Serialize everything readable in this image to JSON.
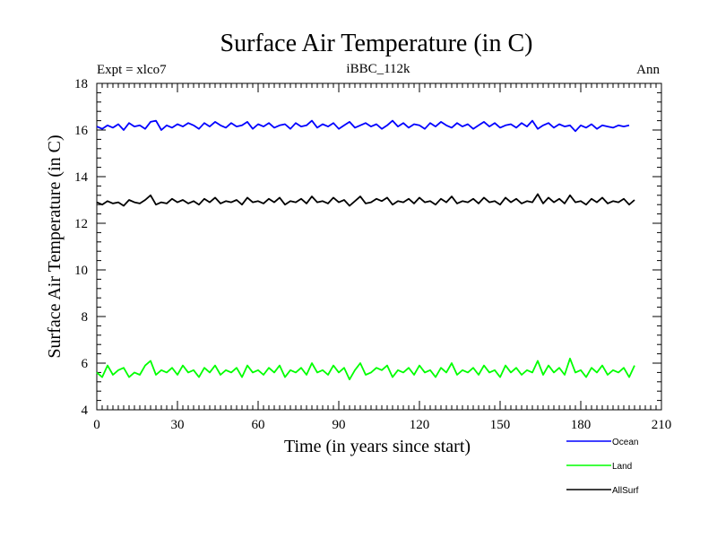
{
  "chart_data": {
    "type": "line",
    "title": "Surface Air Temperature (in C)",
    "subtitle": "iBBC_112k",
    "expt_label": "Expt = xlco7",
    "period_label": "Ann",
    "xlabel": "Time (in years since start)",
    "ylabel": "Surface Air Temperature (in C)",
    "xlim": [
      0,
      210
    ],
    "ylim": [
      4,
      18
    ],
    "x_ticks": [
      0,
      30,
      60,
      90,
      120,
      150,
      180,
      210
    ],
    "y_ticks": [
      4,
      6,
      8,
      10,
      12,
      14,
      16,
      18
    ],
    "x_tick_labels": [
      "0",
      "30",
      "60",
      "90",
      "120",
      "150",
      "180",
      "210"
    ],
    "y_tick_labels": [
      "4",
      "6",
      "8",
      "10",
      "12",
      "14",
      "16",
      "18"
    ],
    "grid": false,
    "legend_position": "bottom-right outside",
    "series": [
      {
        "name": "Ocean",
        "color": "#0000ff",
        "x_start": 0,
        "x_step": 2,
        "values": [
          16.15,
          16.05,
          16.2,
          16.1,
          16.25,
          16.0,
          16.3,
          16.15,
          16.2,
          16.05,
          16.35,
          16.4,
          16.0,
          16.2,
          16.1,
          16.25,
          16.15,
          16.3,
          16.2,
          16.05,
          16.3,
          16.15,
          16.35,
          16.2,
          16.1,
          16.3,
          16.15,
          16.2,
          16.35,
          16.05,
          16.25,
          16.15,
          16.3,
          16.1,
          16.2,
          16.25,
          16.05,
          16.3,
          16.15,
          16.2,
          16.4,
          16.1,
          16.25,
          16.15,
          16.3,
          16.05,
          16.2,
          16.35,
          16.1,
          16.2,
          16.3,
          16.15,
          16.25,
          16.05,
          16.2,
          16.4,
          16.15,
          16.3,
          16.1,
          16.25,
          16.2,
          16.05,
          16.3,
          16.15,
          16.35,
          16.2,
          16.1,
          16.3,
          16.15,
          16.25,
          16.05,
          16.2,
          16.35,
          16.15,
          16.3,
          16.1,
          16.2,
          16.25,
          16.1,
          16.3,
          16.15,
          16.4,
          16.05,
          16.2,
          16.3,
          16.1,
          16.25,
          16.15,
          16.2,
          15.95,
          16.2,
          16.1,
          16.25,
          16.05,
          16.2,
          16.15,
          16.1,
          16.2,
          16.15,
          16.2
        ]
      },
      {
        "name": "Land",
        "color": "#00ff00",
        "x_start": 0,
        "x_step": 2,
        "values": [
          5.6,
          5.4,
          5.9,
          5.5,
          5.7,
          5.8,
          5.4,
          5.6,
          5.5,
          5.9,
          6.1,
          5.5,
          5.7,
          5.6,
          5.8,
          5.5,
          5.9,
          5.6,
          5.7,
          5.4,
          5.8,
          5.6,
          5.9,
          5.5,
          5.7,
          5.6,
          5.8,
          5.4,
          5.9,
          5.6,
          5.7,
          5.5,
          5.8,
          5.6,
          5.9,
          5.4,
          5.7,
          5.6,
          5.8,
          5.5,
          6.0,
          5.6,
          5.7,
          5.5,
          5.9,
          5.6,
          5.8,
          5.3,
          5.7,
          6.0,
          5.5,
          5.6,
          5.8,
          5.7,
          5.9,
          5.4,
          5.7,
          5.6,
          5.8,
          5.5,
          5.9,
          5.6,
          5.7,
          5.4,
          5.8,
          5.6,
          6.0,
          5.5,
          5.7,
          5.6,
          5.8,
          5.5,
          5.9,
          5.6,
          5.7,
          5.4,
          5.9,
          5.6,
          5.8,
          5.5,
          5.7,
          5.6,
          6.1,
          5.5,
          5.9,
          5.6,
          5.8,
          5.5,
          6.2,
          5.6,
          5.7,
          5.4,
          5.8,
          5.6,
          5.9,
          5.5,
          5.7,
          5.6,
          5.8,
          5.4,
          5.9
        ]
      },
      {
        "name": "AllSurf",
        "color": "#000000",
        "x_start": 0,
        "x_step": 2,
        "values": [
          12.9,
          12.8,
          12.95,
          12.85,
          12.9,
          12.75,
          13.0,
          12.9,
          12.85,
          13.0,
          13.2,
          12.8,
          12.9,
          12.85,
          13.05,
          12.9,
          13.0,
          12.85,
          12.95,
          12.8,
          13.05,
          12.9,
          13.1,
          12.85,
          12.95,
          12.9,
          13.0,
          12.8,
          13.1,
          12.9,
          12.95,
          12.85,
          13.05,
          12.9,
          13.1,
          12.8,
          12.95,
          12.9,
          13.05,
          12.85,
          13.15,
          12.9,
          12.95,
          12.85,
          13.1,
          12.9,
          13.0,
          12.75,
          12.95,
          13.15,
          12.85,
          12.9,
          13.05,
          12.95,
          13.1,
          12.8,
          12.95,
          12.9,
          13.05,
          12.85,
          13.1,
          12.9,
          12.95,
          12.8,
          13.05,
          12.9,
          13.15,
          12.85,
          12.95,
          12.9,
          13.05,
          12.85,
          13.1,
          12.9,
          12.95,
          12.8,
          13.1,
          12.9,
          13.05,
          12.85,
          12.95,
          12.9,
          13.25,
          12.85,
          13.1,
          12.9,
          13.05,
          12.85,
          13.2,
          12.9,
          12.95,
          12.8,
          13.05,
          12.9,
          13.1,
          12.85,
          12.95,
          12.9,
          13.05,
          12.8,
          13.0
        ]
      }
    ]
  }
}
